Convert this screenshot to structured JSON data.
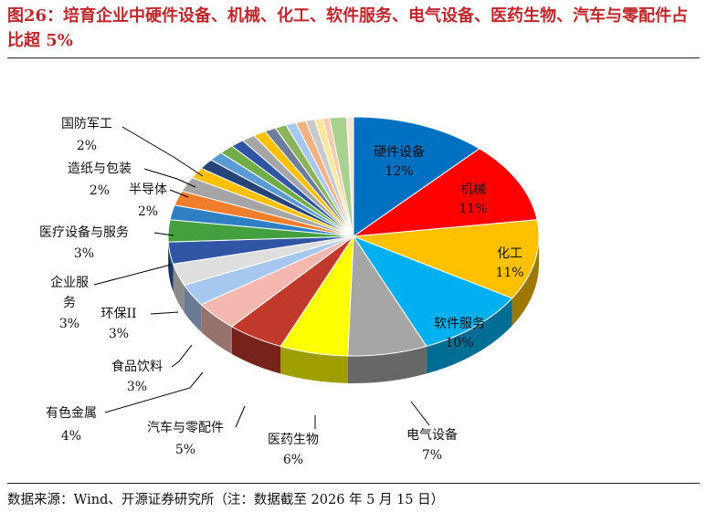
{
  "figure": {
    "title": "图26：培育企业中硬件设备、机械、化工、软件服务、电气设备、医药生物、汽车与零配件占比超 5%",
    "source": "数据来源：Wind、开源证券研究所（注：数据截至 2026 年 5 月 15 日）"
  },
  "chart_data": {
    "type": "pie",
    "style": "3d",
    "labels": [
      {
        "name": "硬件设备",
        "pct": "12%",
        "value": 12,
        "color": "#0070c0"
      },
      {
        "name": "机械",
        "pct": "11%",
        "value": 11,
        "color": "#ff0000"
      },
      {
        "name": "化工",
        "pct": "11%",
        "value": 11,
        "color": "#ffc000"
      },
      {
        "name": "软件服务",
        "pct": "10%",
        "value": 10,
        "color": "#00b0f0"
      },
      {
        "name": "电气设备",
        "pct": "7%",
        "value": 7,
        "color": "#a6a6a6"
      },
      {
        "name": "医药生物",
        "pct": "6%",
        "value": 6,
        "color": "#ffff00"
      },
      {
        "name": "汽车与零配件",
        "pct": "5%",
        "value": 5,
        "color": "#c0392b"
      },
      {
        "name": "有色金属",
        "pct": "4%",
        "value": 4,
        "color": "#f4b8b0"
      },
      {
        "name": "食品饮料",
        "pct": "3%",
        "value": 3,
        "color": "#a6c8ee"
      },
      {
        "name": "环保II",
        "pct": "3%",
        "value": 3,
        "color": "#dedede"
      },
      {
        "name": "企业服务",
        "pct": "3%",
        "value": 3,
        "color": "#2f55a4"
      },
      {
        "name": "医疗设备与服务",
        "pct": "3%",
        "value": 3,
        "color": "#44a03e"
      },
      {
        "name": "半导体",
        "pct": "2%",
        "value": 2,
        "color": "#2e7fc4"
      },
      {
        "name": "造纸与包装",
        "pct": "2%",
        "value": 2,
        "color": "#f07d2b"
      },
      {
        "name": "国防军工",
        "pct": "2%",
        "value": 2,
        "color": "#a5a5a5"
      }
    ],
    "unlabeled_slices": [
      {
        "value": 1.5,
        "color": "#ffc000"
      },
      {
        "value": 1.4,
        "color": "#264478"
      },
      {
        "value": 1.3,
        "color": "#5b9bd5"
      },
      {
        "value": 1.3,
        "color": "#70ad47"
      },
      {
        "value": 1.2,
        "color": "#2f55a4"
      },
      {
        "value": 1.2,
        "color": "#a5a5a5"
      },
      {
        "value": 1.1,
        "color": "#ffc000"
      },
      {
        "value": 1.0,
        "color": "#6f7d99"
      },
      {
        "value": 1.0,
        "color": "#8cb35a"
      },
      {
        "value": 0.9,
        "color": "#a6c8ee"
      },
      {
        "value": 0.9,
        "color": "#f4b183"
      },
      {
        "value": 0.8,
        "color": "#c9c9c9"
      },
      {
        "value": 0.7,
        "color": "#ffe699"
      },
      {
        "value": 0.6,
        "color": "#f8cbad"
      },
      {
        "value": 1.5,
        "color": "#a9d08e"
      },
      {
        "value": 0.6,
        "color": "#fbe5d6"
      }
    ]
  }
}
